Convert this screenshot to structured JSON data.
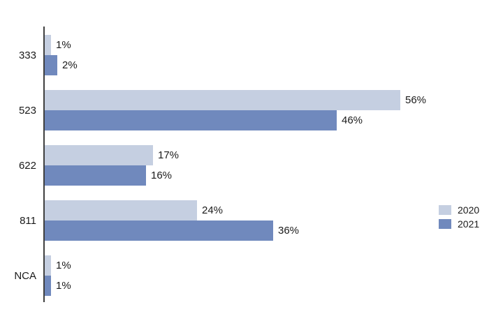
{
  "chart_data": {
    "type": "bar",
    "orientation": "horizontal",
    "title": "",
    "xlabel": "",
    "ylabel": "",
    "grid": false,
    "legend_position": "right",
    "value_suffix": "%",
    "xlim": [
      0,
      70
    ],
    "axis_color": "#3f3f3f",
    "categories": [
      "333",
      "523",
      "622",
      "811",
      "NCA"
    ],
    "series": [
      {
        "name": "2020",
        "color": "#c5cfe1",
        "values": [
          1,
          56,
          17,
          24,
          1
        ]
      },
      {
        "name": "2021",
        "color": "#7089bd",
        "values": [
          2,
          46,
          16,
          36,
          1
        ]
      }
    ]
  }
}
